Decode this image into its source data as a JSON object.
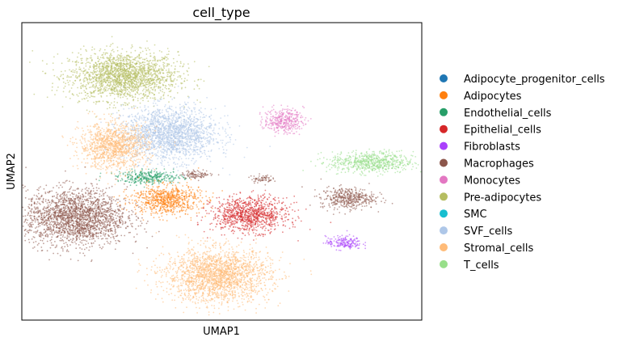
{
  "chart_data": {
    "type": "scatter",
    "title": "cell_type",
    "xlabel": "UMAP1",
    "ylabel": "UMAP2",
    "xlim": [
      -10,
      10
    ],
    "ylim": [
      -10,
      10
    ],
    "grid": false,
    "legend_position": "right",
    "categories": [
      {
        "label": "Adipocyte_progenitor_cells",
        "color": "#1f77b4"
      },
      {
        "label": "Adipocytes",
        "color": "#ff7f0e"
      },
      {
        "label": "Endothelial_cells",
        "color": "#279e68"
      },
      {
        "label": "Epithelial_cells",
        "color": "#d62728"
      },
      {
        "label": "Fibroblasts",
        "color": "#aa40fc"
      },
      {
        "label": "Macrophages",
        "color": "#8c564b"
      },
      {
        "label": "Monocytes",
        "color": "#e377c2"
      },
      {
        "label": "Pre-adipocytes",
        "color": "#b5bd61"
      },
      {
        "label": "SMC",
        "color": "#17becf"
      },
      {
        "label": "SVF_cells",
        "color": "#aec7e8"
      },
      {
        "label": "Stromal_cells",
        "color": "#ffbb78"
      },
      {
        "label": "T_cells",
        "color": "#98df8a"
      }
    ],
    "clusters": [
      {
        "category": "Pre-adipocytes",
        "x": -4.9,
        "y": 6.4,
        "rx": 3.0,
        "ry": 1.8
      },
      {
        "category": "SVF_cells",
        "x": -2.6,
        "y": 2.5,
        "rx": 2.6,
        "ry": 2.0
      },
      {
        "category": "Stromal_cells",
        "x": -5.4,
        "y": 1.7,
        "rx": 1.9,
        "ry": 1.7
      },
      {
        "category": "Endothelial_cells",
        "x": -3.6,
        "y": -0.4,
        "rx": 1.8,
        "ry": 0.5
      },
      {
        "category": "Adipocytes",
        "x": -2.8,
        "y": -1.9,
        "rx": 1.9,
        "ry": 1.1
      },
      {
        "category": "Macrophages",
        "x": -7.3,
        "y": -3.1,
        "rx": 2.8,
        "ry": 2.1
      },
      {
        "category": "Epithelial_cells",
        "x": 1.4,
        "y": -2.9,
        "rx": 2.1,
        "ry": 1.3
      },
      {
        "category": "Stromal_cells",
        "x": -0.2,
        "y": -7.0,
        "rx": 2.9,
        "ry": 2.0
      },
      {
        "category": "Monocytes",
        "x": 3.1,
        "y": 3.4,
        "rx": 1.1,
        "ry": 0.9
      },
      {
        "category": "T_cells",
        "x": 7.5,
        "y": 0.6,
        "rx": 2.3,
        "ry": 0.8
      },
      {
        "category": "Macrophages",
        "x": 6.3,
        "y": -1.8,
        "rx": 1.5,
        "ry": 0.8
      },
      {
        "category": "Fibroblasts",
        "x": 6.1,
        "y": -4.8,
        "rx": 1.0,
        "ry": 0.5
      },
      {
        "category": "Macrophages",
        "x": -1.2,
        "y": -0.2,
        "rx": 0.9,
        "ry": 0.3
      },
      {
        "category": "Macrophages",
        "x": 2.0,
        "y": -0.5,
        "rx": 0.6,
        "ry": 0.3
      }
    ]
  }
}
